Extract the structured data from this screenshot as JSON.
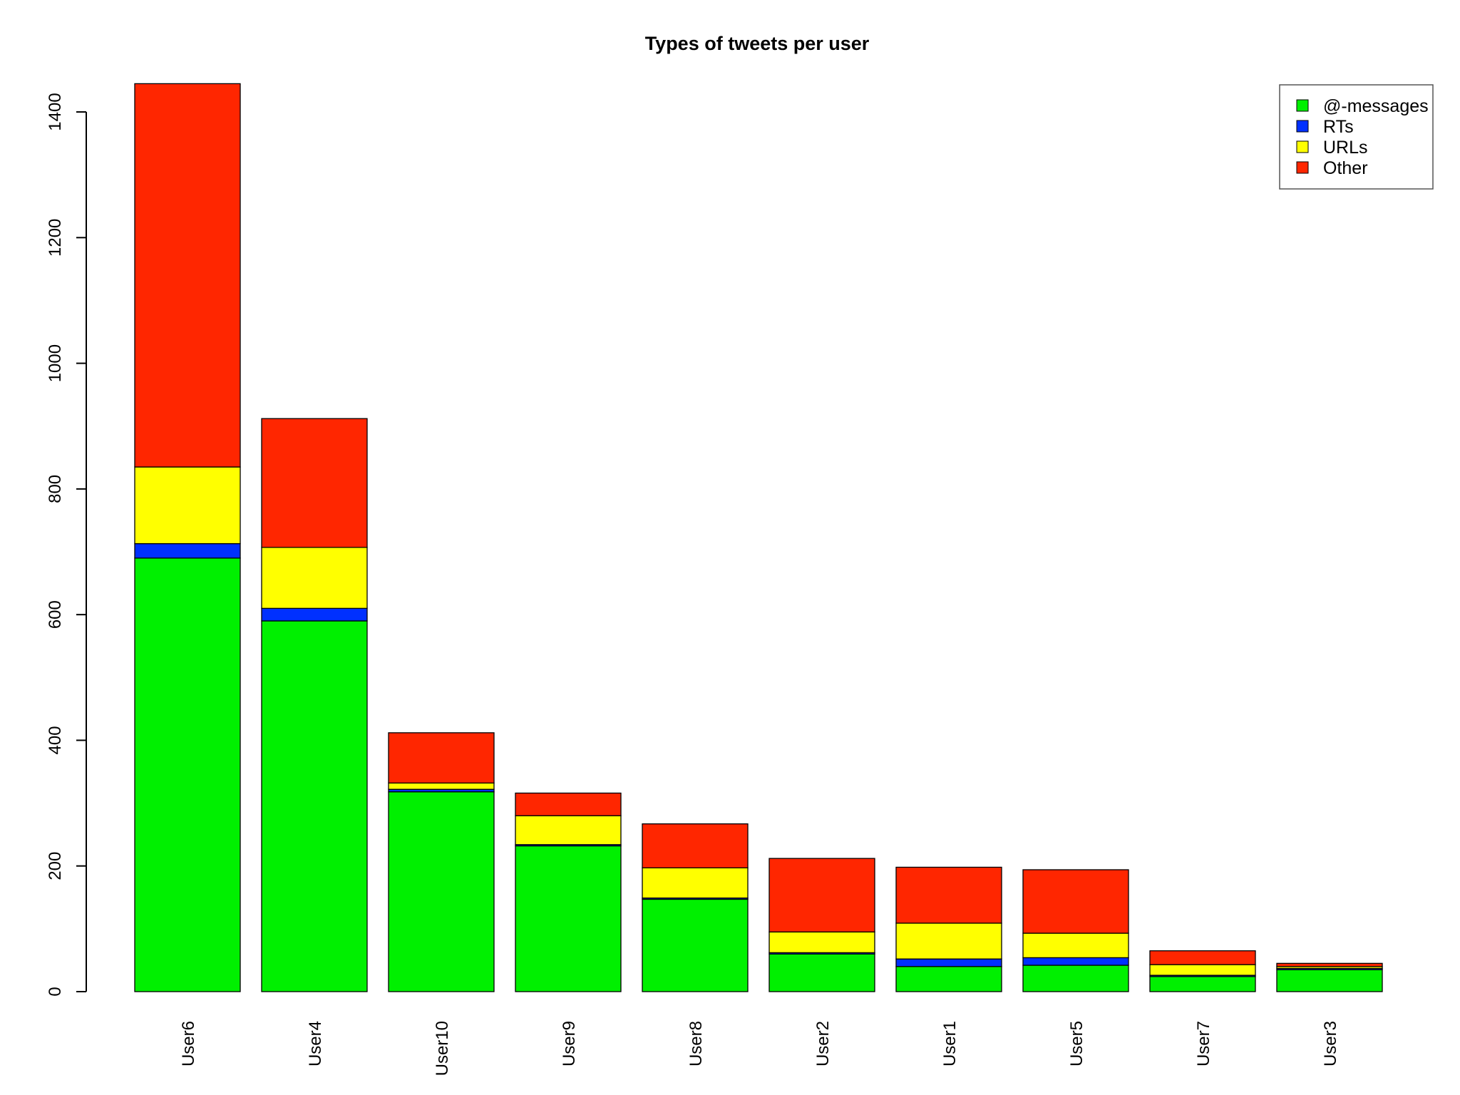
{
  "chart_data": {
    "type": "bar",
    "stacked": true,
    "title": "Types of tweets per user",
    "xlabel": "",
    "ylabel": "",
    "ylim": [
      0,
      1450
    ],
    "yticks": [
      0,
      200,
      400,
      600,
      800,
      1000,
      1200,
      1400
    ],
    "grid": false,
    "legend_position": "top-right",
    "categories": [
      "User6",
      "User4",
      "User10",
      "User9",
      "User8",
      "User2",
      "User1",
      "User5",
      "User7",
      "User3"
    ],
    "series": [
      {
        "name": "@-messages",
        "color": "#00f000",
        "values": [
          690,
          590,
          318,
          232,
          147,
          60,
          40,
          42,
          24,
          35
        ]
      },
      {
        "name": "RTs",
        "color": "#0030ff",
        "values": [
          23,
          20,
          4,
          2,
          2,
          2,
          12,
          12,
          2,
          2
        ]
      },
      {
        "name": "URLs",
        "color": "#ffff00",
        "values": [
          122,
          97,
          10,
          46,
          48,
          33,
          57,
          39,
          17,
          3
        ]
      },
      {
        "name": "Other",
        "color": "#ff2600",
        "values": [
          610,
          205,
          80,
          36,
          70,
          117,
          89,
          101,
          22,
          5
        ]
      }
    ]
  }
}
